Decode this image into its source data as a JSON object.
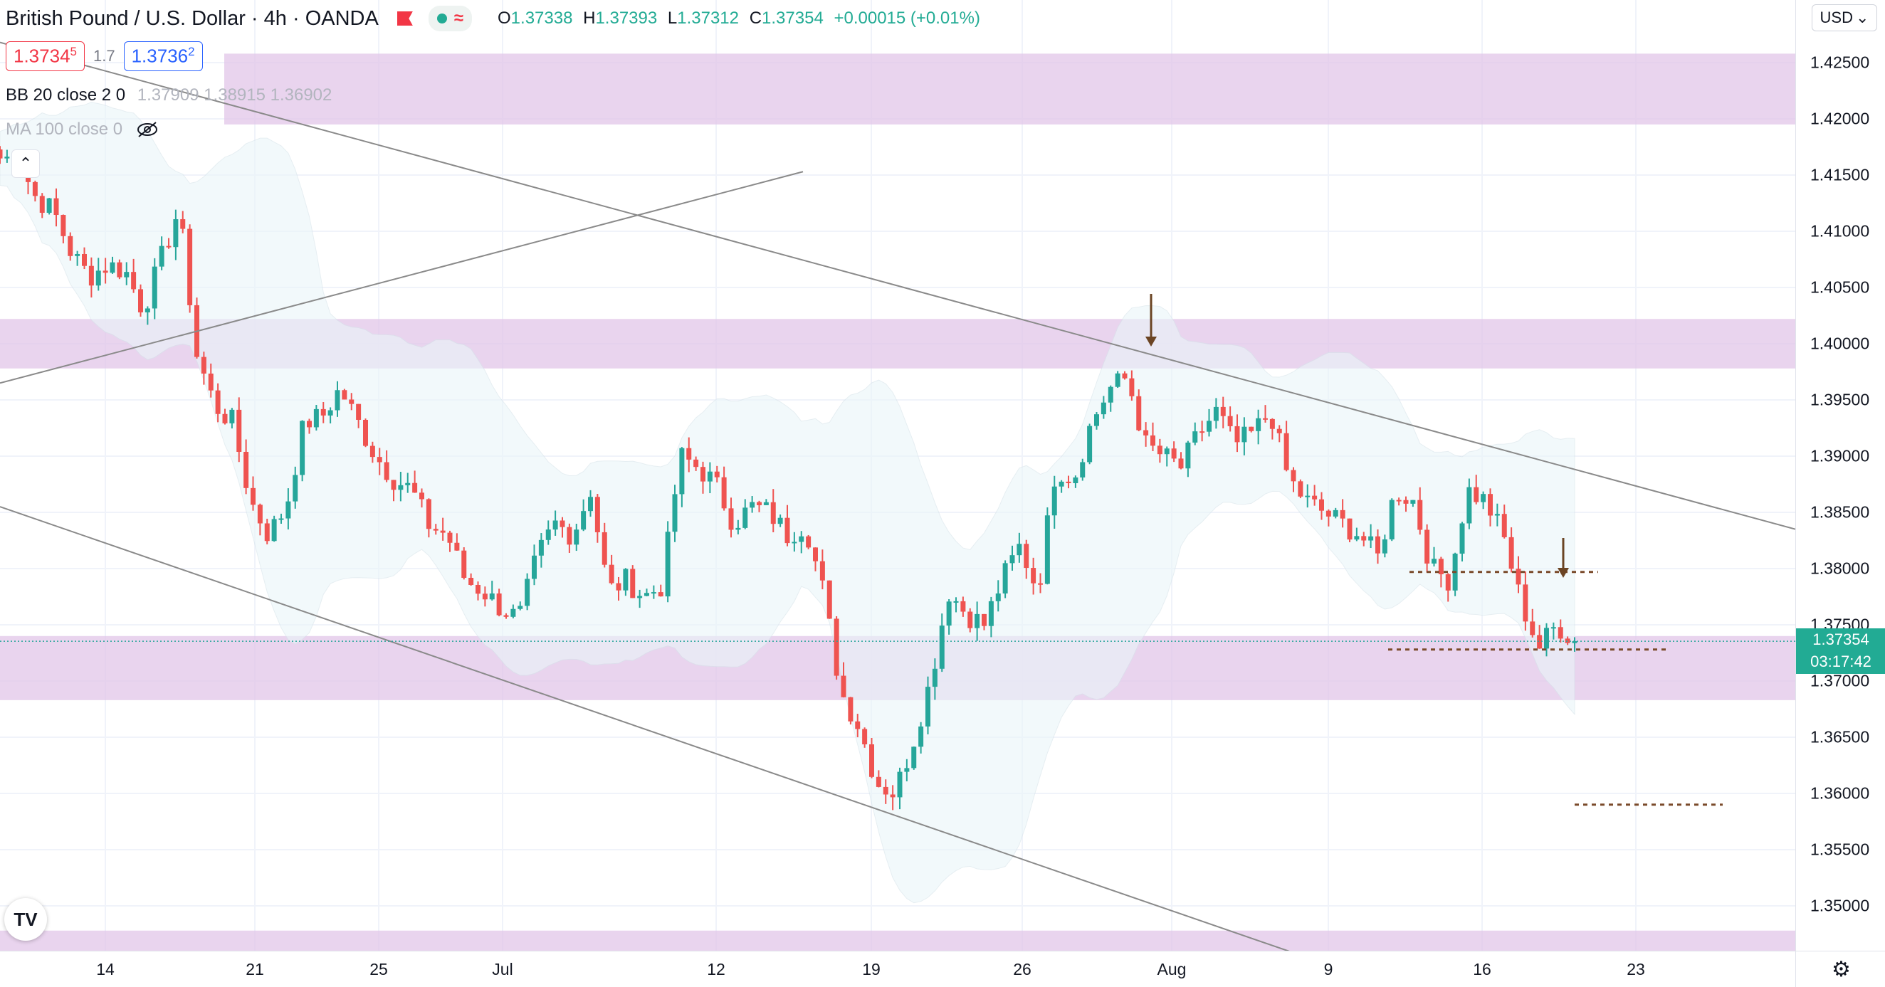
{
  "header": {
    "symbol": "British Pound / U.S. Dollar",
    "interval": "4h",
    "exchange": "OANDA",
    "ohlc": {
      "o_label": "O",
      "o": "1.37338",
      "h_label": "H",
      "h": "1.37393",
      "l_label": "L",
      "l": "1.37312",
      "c_label": "C",
      "c": "1.37354",
      "change": "+0.00015 (+0.01%)"
    }
  },
  "quote": {
    "sell_main": "1.3734",
    "sell_sup": "5",
    "spread": "1.7",
    "buy_main": "1.3736",
    "buy_sup": "2"
  },
  "indicators": {
    "bb": {
      "label": "BB 20 close 2 0",
      "values": "1.37909  1.38915  1.36902"
    },
    "ma": {
      "label": "MA 100 close 0"
    }
  },
  "price_axis": {
    "currency": "USD",
    "labels": [
      "1.42500",
      "1.42000",
      "1.41500",
      "1.41000",
      "1.40500",
      "1.40000",
      "1.39500",
      "1.39000",
      "1.38500",
      "1.38000",
      "1.37500",
      "1.37000",
      "1.36500",
      "1.36000",
      "1.35500",
      "1.35000"
    ],
    "current_price": "1.37354",
    "countdown": "03:17:42"
  },
  "time_axis": {
    "labels": [
      "14",
      "21",
      "25",
      "Jul",
      "12",
      "19",
      "26",
      "Aug",
      "9",
      "16",
      "23"
    ]
  },
  "chart_data": {
    "type": "candlestick",
    "symbol": "GBPUSD",
    "interval": "4h",
    "ylim": [
      1.3455,
      1.4305
    ],
    "last_close": 1.37354,
    "anchor_prices": [
      1.4165,
      1.4165,
      1.413,
      1.4118,
      1.408,
      1.406,
      1.407,
      1.4065,
      1.403,
      1.4075,
      1.412,
      1.399,
      1.3945,
      1.393,
      1.386,
      1.383,
      1.3855,
      1.393,
      1.3935,
      1.396,
      1.393,
      1.39,
      1.388,
      1.387,
      1.3838,
      1.383,
      1.379,
      1.378,
      1.3765,
      1.3755,
      1.381,
      1.384,
      1.383,
      1.387,
      1.378,
      1.379,
      1.3775,
      1.3785,
      1.39,
      1.389,
      1.3875,
      1.384,
      1.3855,
      1.385,
      1.383,
      1.384,
      1.378,
      1.369,
      1.366,
      1.361,
      1.36,
      1.3645,
      1.37,
      1.378,
      1.376,
      1.375,
      1.379,
      1.382,
      1.378,
      1.389,
      1.388,
      1.393,
      1.396,
      1.397,
      1.391,
      1.39,
      1.389,
      1.392,
      1.394,
      1.391,
      1.392,
      1.394,
      1.388,
      1.386,
      1.385,
      1.384,
      1.383,
      1.381,
      1.387,
      1.386,
      1.38,
      1.379,
      1.387,
      1.386,
      1.383,
      1.377,
      1.373,
      1.375,
      1.37354
    ],
    "zones": [
      [
        1.4195,
        1.4258
      ],
      [
        1.3978,
        1.4022
      ],
      [
        1.3683,
        1.374
      ],
      [
        1.3456,
        1.3478
      ]
    ],
    "levels_dashed": [
      1.3797,
      1.3728,
      1.359
    ],
    "annotations": [
      "down-arrow at channel top touch (late Jul)",
      "down-arrow at 1.3797 level (mid Aug)"
    ]
  },
  "colors": {
    "up": "#26a69a",
    "down": "#ef5350",
    "zone": "#e1c5e8",
    "bb_fill": "#eaf6f9",
    "line": "#8a8a8a",
    "dashed": "#7a4a2a",
    "arrow": "#6b4423"
  }
}
